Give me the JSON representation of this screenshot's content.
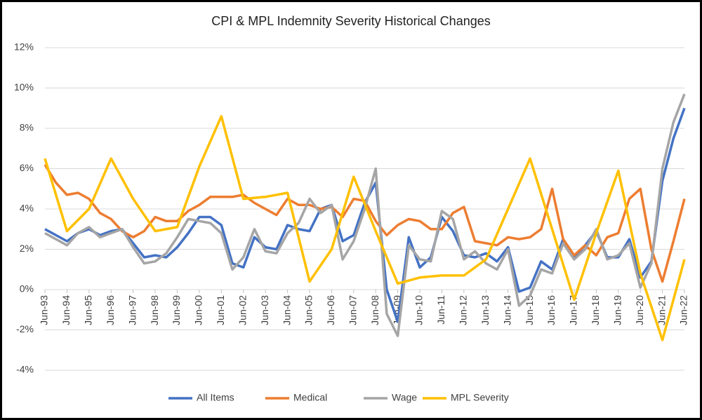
{
  "chart_data": {
    "type": "line",
    "title": "CPI & MPL Indemnity Severity Historical Changes",
    "x": [
      1993.5,
      1994.0,
      1994.5,
      1995.0,
      1995.5,
      1996.0,
      1996.5,
      1997.0,
      1997.5,
      1998.0,
      1998.5,
      1999.0,
      1999.5,
      2000.0,
      2000.5,
      2001.0,
      2001.5,
      2002.0,
      2002.5,
      2003.0,
      2003.5,
      2004.0,
      2004.5,
      2005.0,
      2005.5,
      2006.0,
      2006.5,
      2007.0,
      2007.5,
      2008.0,
      2008.5,
      2009.0,
      2009.5,
      2010.0,
      2010.5,
      2011.0,
      2011.5,
      2012.0,
      2012.5,
      2013.0,
      2013.5,
      2014.0,
      2014.5,
      2015.0,
      2015.5,
      2016.0,
      2016.5,
      2017.0,
      2017.5,
      2018.0,
      2018.5,
      2019.0,
      2019.5,
      2020.0,
      2020.5,
      2021.0,
      2021.5,
      2022.0,
      2022.5
    ],
    "series": [
      {
        "name": "All Items",
        "color": "#4472c4",
        "values": [
          3.0,
          2.7,
          2.4,
          2.8,
          3.0,
          2.7,
          2.9,
          3.0,
          2.3,
          1.6,
          1.7,
          1.6,
          2.1,
          2.8,
          3.6,
          3.6,
          3.2,
          1.3,
          1.1,
          2.6,
          2.1,
          2.0,
          3.2,
          3.0,
          2.9,
          4.0,
          4.2,
          2.4,
          2.7,
          4.3,
          5.3,
          0.0,
          -1.6,
          2.6,
          1.1,
          1.6,
          3.6,
          2.9,
          1.7,
          1.6,
          1.8,
          1.4,
          2.1,
          -0.1,
          0.1,
          1.4,
          1.0,
          2.5,
          1.6,
          2.2,
          2.9,
          1.6,
          1.6,
          2.5,
          0.6,
          1.4,
          5.4,
          7.5,
          9.0
        ]
      },
      {
        "name": "Medical",
        "color": "#ed7d31",
        "values": [
          6.2,
          5.3,
          4.7,
          4.8,
          4.5,
          3.8,
          3.5,
          2.9,
          2.6,
          2.9,
          3.6,
          3.4,
          3.4,
          3.9,
          4.2,
          4.6,
          4.6,
          4.6,
          4.7,
          4.3,
          4.0,
          3.7,
          4.5,
          4.2,
          4.2,
          4.0,
          4.1,
          3.6,
          4.5,
          4.4,
          3.4,
          2.7,
          3.2,
          3.5,
          3.4,
          3.0,
          3.0,
          3.8,
          4.1,
          2.4,
          2.3,
          2.2,
          2.6,
          2.5,
          2.6,
          3.0,
          5.0,
          2.5,
          1.7,
          2.2,
          1.7,
          2.6,
          2.8,
          4.5,
          5.0,
          2.0,
          0.4,
          2.4,
          4.5
        ]
      },
      {
        "name": "Wage",
        "color": "#a5a5a5",
        "values": [
          2.8,
          2.5,
          2.2,
          2.8,
          3.1,
          2.6,
          2.8,
          3.0,
          2.1,
          1.3,
          1.4,
          1.8,
          2.6,
          3.5,
          3.4,
          3.3,
          2.8,
          1.0,
          1.6,
          3.0,
          1.9,
          1.8,
          2.8,
          3.3,
          4.5,
          3.8,
          4.2,
          1.5,
          2.4,
          4.0,
          6.0,
          -1.2,
          -2.3,
          2.2,
          1.5,
          1.4,
          3.9,
          3.5,
          1.5,
          1.9,
          1.3,
          1.0,
          2.0,
          -0.8,
          -0.3,
          1.0,
          0.8,
          2.3,
          1.5,
          2.0,
          3.0,
          1.5,
          1.7,
          2.3,
          0.1,
          1.3,
          6.0,
          8.3,
          9.7
        ]
      },
      {
        "name": "MPL Severity",
        "color": "#ffc000",
        "x": [
          1993.5,
          1994.5,
          1995.5,
          1996.5,
          1997.5,
          1998.5,
          1999.5,
          2000.5,
          2001.5,
          2002.5,
          2003.5,
          2004.5,
          2005.5,
          2006.5,
          2007.5,
          2008.5,
          2009.5,
          2010.5,
          2011.5,
          2012.5,
          2013.5,
          2014.5,
          2015.5,
          2016.5,
          2017.5,
          2018.5,
          2019.5,
          2020.5,
          2021.5,
          2022.5
        ],
        "values": [
          6.5,
          2.9,
          4.0,
          6.5,
          4.5,
          2.9,
          3.1,
          6.1,
          8.6,
          4.5,
          4.6,
          4.8,
          0.4,
          2.0,
          5.6,
          2.9,
          0.3,
          0.6,
          0.7,
          0.7,
          1.5,
          4.0,
          6.5,
          3.0,
          -0.5,
          2.8,
          5.9,
          0.8,
          -2.5,
          1.5
        ]
      }
    ],
    "xlim": [
      1993.5,
      2022.5
    ],
    "xticks": [
      {
        "value": 1993.5,
        "label": "Jun-93"
      },
      {
        "value": 1994.5,
        "label": "Jun-94"
      },
      {
        "value": 1995.5,
        "label": "Jun-95"
      },
      {
        "value": 1996.5,
        "label": "Jun-96"
      },
      {
        "value": 1997.5,
        "label": "Jun-97"
      },
      {
        "value": 1998.5,
        "label": "Jun-98"
      },
      {
        "value": 1999.5,
        "label": "Jun-99"
      },
      {
        "value": 2000.5,
        "label": "Jun-00"
      },
      {
        "value": 2001.5,
        "label": "Jun-01"
      },
      {
        "value": 2002.5,
        "label": "Jun-02"
      },
      {
        "value": 2003.5,
        "label": "Jun-03"
      },
      {
        "value": 2004.5,
        "label": "Jun-04"
      },
      {
        "value": 2005.5,
        "label": "Jun-05"
      },
      {
        "value": 2006.5,
        "label": "Jun-06"
      },
      {
        "value": 2007.5,
        "label": "Jun-07"
      },
      {
        "value": 2008.5,
        "label": "Jun-08"
      },
      {
        "value": 2009.5,
        "label": "Jun-09"
      },
      {
        "value": 2010.5,
        "label": "Jun-10"
      },
      {
        "value": 2011.5,
        "label": "Jun-11"
      },
      {
        "value": 2012.5,
        "label": "Jun-12"
      },
      {
        "value": 2013.5,
        "label": "Jun-13"
      },
      {
        "value": 2014.5,
        "label": "Jun-14"
      },
      {
        "value": 2015.5,
        "label": "Jun-15"
      },
      {
        "value": 2016.5,
        "label": "Jun-16"
      },
      {
        "value": 2017.5,
        "label": "Jun-17"
      },
      {
        "value": 2018.5,
        "label": "Jun-18"
      },
      {
        "value": 2019.5,
        "label": "Jun-19"
      },
      {
        "value": 2020.5,
        "label": "Jun-20"
      },
      {
        "value": 2021.5,
        "label": "Jun-21"
      },
      {
        "value": 2022.5,
        "label": "Jun-22"
      }
    ],
    "ylim": [
      -4,
      12
    ],
    "yticks": [
      {
        "value": -4,
        "label": "-4%"
      },
      {
        "value": -2,
        "label": "-2%"
      },
      {
        "value": 0,
        "label": "0%"
      },
      {
        "value": 2,
        "label": "2%"
      },
      {
        "value": 4,
        "label": "4%"
      },
      {
        "value": 6,
        "label": "6%"
      },
      {
        "value": 8,
        "label": "8%"
      },
      {
        "value": 10,
        "label": "10%"
      },
      {
        "value": 12,
        "label": "12%"
      }
    ],
    "grid": true,
    "legend": "bottom"
  }
}
